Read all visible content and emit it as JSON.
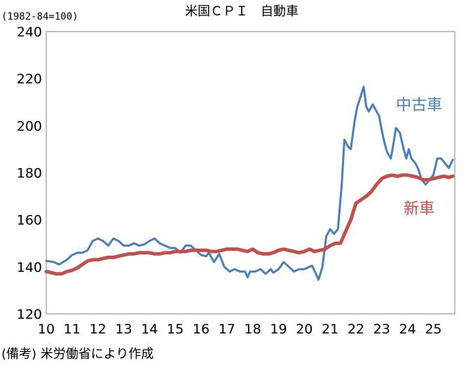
{
  "chart_data": {
    "type": "line",
    "title": "米国ＣＰＩ　自動車",
    "unit_label": "(1982-84=100)",
    "note": "(備考) 米労働省により作成",
    "ylim": [
      120,
      240
    ],
    "yticks": [
      120,
      140,
      160,
      180,
      200,
      220,
      240
    ],
    "xlim": [
      10,
      25.83
    ],
    "xticks": [
      "10",
      "11",
      "12",
      "13",
      "14",
      "15",
      "16",
      "17",
      "18",
      "19",
      "20",
      "21",
      "22",
      "23",
      "24",
      "25"
    ],
    "grid": false,
    "series": [
      {
        "name": "中古車",
        "color": "#4a7ebb",
        "points": [
          [
            10.0,
            142.5
          ],
          [
            10.3,
            142.0
          ],
          [
            10.5,
            141.0
          ],
          [
            10.8,
            143.0
          ],
          [
            11.0,
            145.0
          ],
          [
            11.2,
            146.0
          ],
          [
            11.4,
            146.0
          ],
          [
            11.6,
            147.0
          ],
          [
            11.8,
            151.0
          ],
          [
            12.0,
            152.0
          ],
          [
            12.2,
            151.0
          ],
          [
            12.4,
            149.0
          ],
          [
            12.6,
            152.0
          ],
          [
            12.8,
            151.0
          ],
          [
            13.0,
            149.0
          ],
          [
            13.2,
            149.0
          ],
          [
            13.4,
            150.0
          ],
          [
            13.6,
            149.0
          ],
          [
            13.8,
            149.5
          ],
          [
            14.0,
            151.0
          ],
          [
            14.2,
            152.0
          ],
          [
            14.4,
            150.0
          ],
          [
            14.6,
            149.0
          ],
          [
            14.8,
            148.0
          ],
          [
            15.0,
            148.0
          ],
          [
            15.2,
            146.0
          ],
          [
            15.4,
            149.0
          ],
          [
            15.6,
            149.0
          ],
          [
            15.8,
            147.0
          ],
          [
            16.0,
            145.0
          ],
          [
            16.2,
            144.5
          ],
          [
            16.3,
            146.0
          ],
          [
            16.4,
            144.0
          ],
          [
            16.5,
            142.0
          ],
          [
            16.7,
            145.5
          ],
          [
            16.9,
            140.0
          ],
          [
            17.1,
            138.0
          ],
          [
            17.3,
            139.0
          ],
          [
            17.5,
            138.0
          ],
          [
            17.7,
            138.0
          ],
          [
            17.8,
            135.5
          ],
          [
            17.9,
            138.0
          ],
          [
            18.1,
            138.0
          ],
          [
            18.3,
            139.0
          ],
          [
            18.5,
            137.0
          ],
          [
            18.7,
            139.0
          ],
          [
            18.8,
            137.5
          ],
          [
            19.0,
            139.0
          ],
          [
            19.2,
            142.0
          ],
          [
            19.4,
            140.0
          ],
          [
            19.6,
            138.0
          ],
          [
            19.8,
            139.0
          ],
          [
            20.0,
            139.0
          ],
          [
            20.2,
            140.0
          ],
          [
            20.3,
            140.5
          ],
          [
            20.45,
            137.0
          ],
          [
            20.55,
            134.5
          ],
          [
            20.7,
            140.0
          ],
          [
            20.85,
            153.0
          ],
          [
            21.0,
            156.0
          ],
          [
            21.15,
            154.0
          ],
          [
            21.3,
            156.0
          ],
          [
            21.45,
            175.0
          ],
          [
            21.55,
            194.0
          ],
          [
            21.7,
            191.0
          ],
          [
            21.8,
            190.0
          ],
          [
            21.95,
            202.0
          ],
          [
            22.05,
            208.0
          ],
          [
            22.2,
            213.0
          ],
          [
            22.3,
            216.5
          ],
          [
            22.4,
            208.0
          ],
          [
            22.5,
            206.0
          ],
          [
            22.65,
            209.0
          ],
          [
            22.75,
            207.0
          ],
          [
            22.9,
            204.0
          ],
          [
            23.0,
            198.0
          ],
          [
            23.1,
            193.0
          ],
          [
            23.2,
            189.0
          ],
          [
            23.35,
            186.0
          ],
          [
            23.45,
            192.0
          ],
          [
            23.55,
            199.0
          ],
          [
            23.7,
            197.0
          ],
          [
            23.85,
            190.0
          ],
          [
            23.95,
            186.0
          ],
          [
            24.05,
            190.0
          ],
          [
            24.15,
            186.0
          ],
          [
            24.3,
            184.0
          ],
          [
            24.4,
            182.0
          ],
          [
            24.55,
            177.0
          ],
          [
            24.7,
            175.0
          ],
          [
            24.85,
            177.0
          ],
          [
            25.0,
            179.0
          ],
          [
            25.15,
            186.0
          ],
          [
            25.3,
            186.0
          ],
          [
            25.45,
            184.0
          ],
          [
            25.6,
            182.0
          ],
          [
            25.75,
            185.5
          ]
        ]
      },
      {
        "name": "新車",
        "color": "#c0504d",
        "points": [
          [
            10.0,
            138.0
          ],
          [
            10.2,
            137.5
          ],
          [
            10.4,
            137.0
          ],
          [
            10.6,
            137.0
          ],
          [
            10.8,
            138.0
          ],
          [
            11.0,
            138.5
          ],
          [
            11.2,
            139.5
          ],
          [
            11.4,
            141.0
          ],
          [
            11.6,
            142.5
          ],
          [
            11.8,
            143.0
          ],
          [
            12.0,
            143.0
          ],
          [
            12.2,
            143.5
          ],
          [
            12.4,
            144.0
          ],
          [
            12.6,
            144.0
          ],
          [
            12.8,
            144.5
          ],
          [
            13.0,
            145.0
          ],
          [
            13.2,
            145.5
          ],
          [
            13.4,
            145.5
          ],
          [
            13.6,
            146.0
          ],
          [
            13.8,
            146.0
          ],
          [
            14.0,
            146.0
          ],
          [
            14.2,
            145.5
          ],
          [
            14.4,
            145.5
          ],
          [
            14.6,
            146.0
          ],
          [
            14.8,
            146.0
          ],
          [
            15.0,
            146.5
          ],
          [
            15.2,
            146.5
          ],
          [
            15.4,
            146.5
          ],
          [
            15.6,
            147.0
          ],
          [
            15.8,
            147.0
          ],
          [
            16.0,
            147.0
          ],
          [
            16.2,
            147.0
          ],
          [
            16.4,
            146.5
          ],
          [
            16.6,
            146.5
          ],
          [
            16.8,
            147.0
          ],
          [
            17.0,
            147.5
          ],
          [
            17.2,
            147.5
          ],
          [
            17.4,
            147.5
          ],
          [
            17.6,
            147.0
          ],
          [
            17.8,
            146.5
          ],
          [
            18.0,
            147.5
          ],
          [
            18.2,
            146.0
          ],
          [
            18.4,
            145.5
          ],
          [
            18.6,
            145.5
          ],
          [
            18.8,
            146.0
          ],
          [
            19.0,
            147.0
          ],
          [
            19.2,
            147.5
          ],
          [
            19.4,
            147.0
          ],
          [
            19.6,
            146.5
          ],
          [
            19.8,
            146.0
          ],
          [
            20.0,
            146.5
          ],
          [
            20.2,
            147.5
          ],
          [
            20.4,
            146.5
          ],
          [
            20.6,
            147.0
          ],
          [
            20.8,
            147.5
          ],
          [
            21.0,
            149.0
          ],
          [
            21.2,
            150.0
          ],
          [
            21.4,
            150.0
          ],
          [
            21.6,
            155.0
          ],
          [
            21.8,
            160.0
          ],
          [
            22.0,
            167.0
          ],
          [
            22.2,
            168.5
          ],
          [
            22.4,
            170.0
          ],
          [
            22.6,
            172.0
          ],
          [
            22.8,
            175.0
          ],
          [
            23.0,
            177.5
          ],
          [
            23.2,
            178.5
          ],
          [
            23.4,
            179.0
          ],
          [
            23.6,
            178.5
          ],
          [
            23.8,
            179.0
          ],
          [
            24.0,
            179.0
          ],
          [
            24.2,
            178.5
          ],
          [
            24.4,
            178.0
          ],
          [
            24.6,
            177.0
          ],
          [
            24.8,
            177.0
          ],
          [
            25.0,
            177.5
          ],
          [
            25.2,
            178.0
          ],
          [
            25.4,
            178.5
          ],
          [
            25.6,
            178.0
          ],
          [
            25.75,
            178.5
          ]
        ]
      }
    ]
  }
}
